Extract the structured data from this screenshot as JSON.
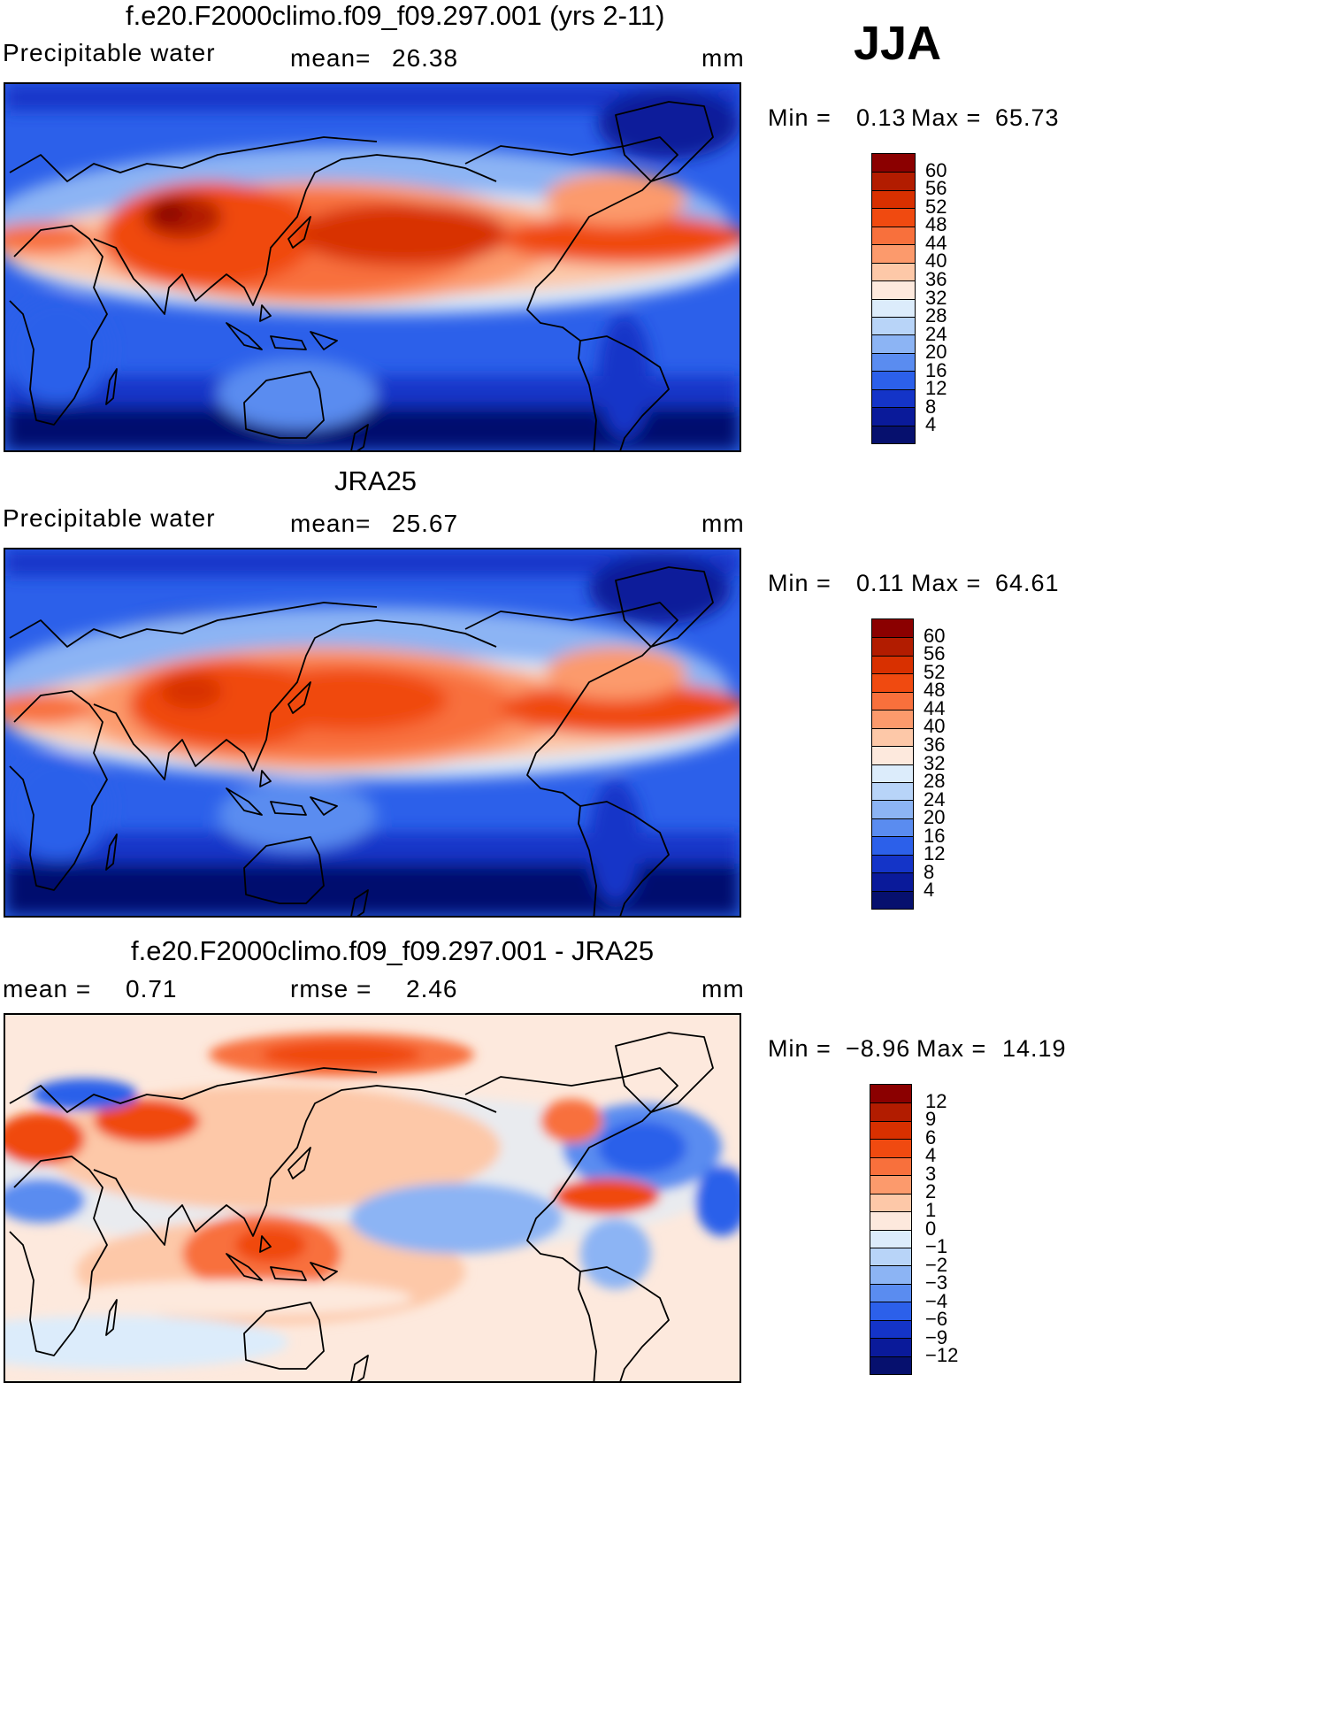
{
  "season": "JJA",
  "units": "mm",
  "panels": [
    {
      "id": "model",
      "title": "f.e20.F2000climo.f09_f09.297.001 (yrs 2-11)",
      "left_label": "Precipitable water",
      "stat1_label": "mean=",
      "stat1_value": "26.38",
      "stat2_label": "",
      "stat2_value": "",
      "units": "mm",
      "min_label": "Min =",
      "min_value": "0.13",
      "max_label": "Max =",
      "max_value": "65.73",
      "colorbar": {
        "labels": [
          "60",
          "56",
          "52",
          "48",
          "44",
          "40",
          "36",
          "32",
          "28",
          "24",
          "20",
          "16",
          "12",
          "8",
          "4"
        ],
        "colors": [
          "#8b0000",
          "#b21c00",
          "#d83000",
          "#f04a10",
          "#f8703c",
          "#fc9a6c",
          "#fdc8a8",
          "#fde9dd",
          "#dcecfb",
          "#b8d4f8",
          "#8cb4f4",
          "#5a8cf0",
          "#2c60ea",
          "#1434c8",
          "#0a1a9a",
          "#06106e"
        ]
      }
    },
    {
      "id": "obs",
      "title": "JRA25",
      "left_label": "Precipitable water",
      "stat1_label": "mean=",
      "stat1_value": "25.67",
      "stat2_label": "",
      "stat2_value": "",
      "units": "mm",
      "min_label": "Min =",
      "min_value": "0.11",
      "max_label": "Max =",
      "max_value": "64.61",
      "colorbar": {
        "labels": [
          "60",
          "56",
          "52",
          "48",
          "44",
          "40",
          "36",
          "32",
          "28",
          "24",
          "20",
          "16",
          "12",
          "8",
          "4"
        ],
        "colors": [
          "#8b0000",
          "#b21c00",
          "#d83000",
          "#f04a10",
          "#f8703c",
          "#fc9a6c",
          "#fdc8a8",
          "#fde9dd",
          "#dcecfb",
          "#b8d4f8",
          "#8cb4f4",
          "#5a8cf0",
          "#2c60ea",
          "#1434c8",
          "#0a1a9a",
          "#06106e"
        ]
      }
    },
    {
      "id": "diff",
      "title": "f.e20.F2000climo.f09_f09.297.001 - JRA25",
      "left_label": "mean =",
      "stat1_label": "0.71",
      "stat1_value": "",
      "stat2_label": "rmse =",
      "stat2_value": "2.46",
      "units": "mm",
      "min_label": "Min =",
      "min_value": "−8.96",
      "max_label": "Max =",
      "max_value": "14.19",
      "colorbar": {
        "labels": [
          "12",
          "9",
          "6",
          "4",
          "3",
          "2",
          "1",
          "0",
          "−1",
          "−2",
          "−3",
          "−4",
          "−6",
          "−9",
          "−12"
        ],
        "colors": [
          "#8b0000",
          "#b21c00",
          "#d83000",
          "#f04a10",
          "#f8703c",
          "#fc9a6c",
          "#fdc8a8",
          "#fde9dd",
          "#dcecfb",
          "#b8d4f8",
          "#8cb4f4",
          "#5a8cf0",
          "#2c60ea",
          "#1434c8",
          "#0a1a9a",
          "#06106e"
        ]
      }
    }
  ]
}
